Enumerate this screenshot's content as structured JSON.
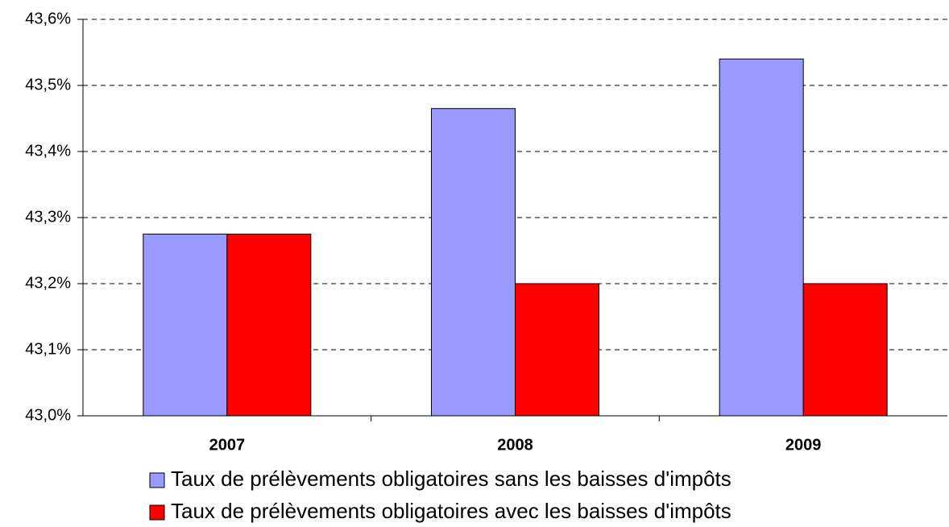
{
  "chart_data": {
    "type": "bar",
    "categories": [
      "2007",
      "2008",
      "2009"
    ],
    "series": [
      {
        "name": "Taux de prélèvements obligatoires sans les baisses d'impôts",
        "color": "#9999ff",
        "values": [
          43.275,
          43.465,
          43.54
        ]
      },
      {
        "name": "Taux de prélèvements obligatoires avec les baisses d'impôts",
        "color": "#ff0000",
        "values": [
          43.275,
          43.2,
          43.2
        ]
      }
    ],
    "ylim": [
      43.0,
      43.6
    ],
    "yticks": [
      {
        "value": 43.0,
        "label": "43,0%"
      },
      {
        "value": 43.1,
        "label": "43,1%"
      },
      {
        "value": 43.2,
        "label": "43,2%"
      },
      {
        "value": 43.3,
        "label": "43,3%"
      },
      {
        "value": 43.4,
        "label": "43,4%"
      },
      {
        "value": 43.5,
        "label": "43,5%"
      },
      {
        "value": 43.6,
        "label": "43,6%"
      }
    ],
    "grid": true,
    "legend": "bottom"
  }
}
